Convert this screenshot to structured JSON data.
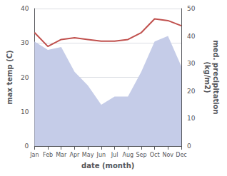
{
  "chart_data": {
    "type": "line",
    "categories": [
      "Jan",
      "Feb",
      "Mar",
      "Apr",
      "May",
      "Jun",
      "Jul",
      "Aug",
      "Sep",
      "Oct",
      "Nov",
      "Dec"
    ],
    "series": [
      {
        "type": "area",
        "color": "#c5cce8",
        "axis": "y2",
        "values": [
          38,
          35,
          36,
          27,
          22,
          15,
          18,
          18,
          27,
          38,
          40,
          29
        ]
      },
      {
        "type": "line",
        "color": "#c0504d",
        "values": [
          33,
          29,
          31,
          31.5,
          31,
          30.5,
          30.5,
          31,
          33,
          37,
          36.5,
          35
        ]
      }
    ],
    "xlabel": "date (month)",
    "ylabel": "max temp (C)",
    "y2label": "med. precipitation\n(kg/m2)",
    "ylim": [
      0,
      40
    ],
    "yticks": [
      0,
      10,
      20,
      30,
      40
    ],
    "y2lim": [
      0,
      50
    ],
    "y2ticks": [
      0,
      10,
      20,
      30,
      40,
      50
    ],
    "grid": true
  }
}
